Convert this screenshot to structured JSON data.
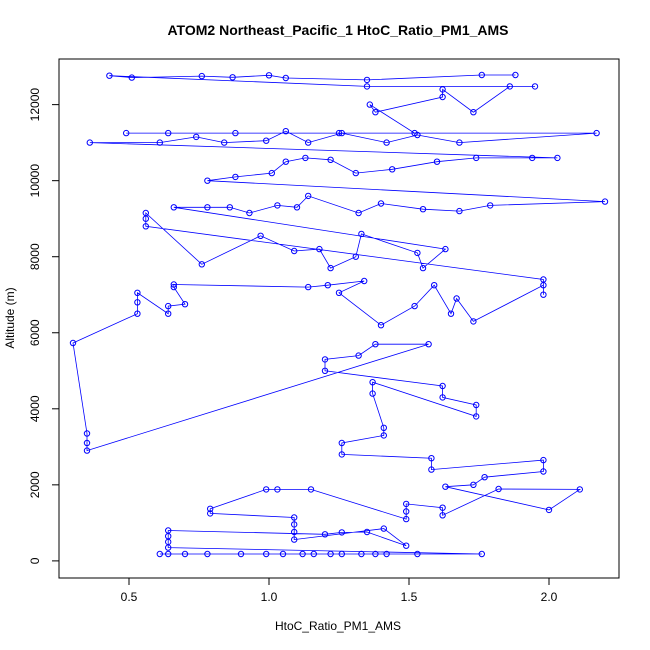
{
  "chart_data": {
    "type": "scatter",
    "title": "ATOM2 Northeast_Pacific_1 HtoC_Ratio_PM1_AMS",
    "xlabel": "HtoC_Ratio_PM1_AMS",
    "ylabel": "Altitude (m)",
    "xlim": [
      0.25,
      2.25
    ],
    "ylim": [
      -450,
      13200
    ],
    "xticks": [
      0.5,
      1.0,
      1.5,
      2.0
    ],
    "yticks": [
      0,
      2000,
      4000,
      6000,
      8000,
      10000,
      12000
    ],
    "xtick_labels": [
      "0.5",
      "1.0",
      "1.5",
      "2.0"
    ],
    "ytick_labels": [
      "0",
      "2000",
      "4000",
      "6000",
      "8000",
      "10000",
      "12000"
    ],
    "grid": false,
    "series": [
      {
        "color": "#0000ff",
        "marker": "open-circle",
        "connected": true,
        "points": [
          [
            0.61,
            180
          ],
          [
            0.64,
            180
          ],
          [
            0.7,
            180
          ],
          [
            0.78,
            180
          ],
          [
            0.9,
            180
          ],
          [
            0.99,
            180
          ],
          [
            1.05,
            180
          ],
          [
            1.12,
            180
          ],
          [
            1.16,
            180
          ],
          [
            1.22,
            180
          ],
          [
            1.26,
            180
          ],
          [
            1.33,
            180
          ],
          [
            1.38,
            180
          ],
          [
            1.42,
            180
          ],
          [
            1.53,
            180
          ],
          [
            1.76,
            180
          ],
          [
            0.64,
            350
          ],
          [
            0.64,
            500
          ],
          [
            0.64,
            650
          ],
          [
            0.64,
            800
          ],
          [
            1.2,
            700
          ],
          [
            1.26,
            750
          ],
          [
            1.35,
            760
          ],
          [
            1.49,
            400
          ],
          [
            1.41,
            850
          ],
          [
            1.09,
            560
          ],
          [
            1.09,
            760
          ],
          [
            1.09,
            960
          ],
          [
            1.09,
            1140
          ],
          [
            0.79,
            1250
          ],
          [
            0.79,
            1370
          ],
          [
            0.99,
            1880
          ],
          [
            1.03,
            1880
          ],
          [
            1.15,
            1880
          ],
          [
            1.49,
            1100
          ],
          [
            1.49,
            1300
          ],
          [
            1.49,
            1500
          ],
          [
            1.62,
            1400
          ],
          [
            1.62,
            1200
          ],
          [
            1.82,
            1890
          ],
          [
            2.11,
            1880
          ],
          [
            2.0,
            1340
          ],
          [
            1.63,
            1950
          ],
          [
            1.73,
            2000
          ],
          [
            1.77,
            2200
          ],
          [
            1.98,
            2350
          ],
          [
            1.98,
            2650
          ],
          [
            1.58,
            2400
          ],
          [
            1.58,
            2700
          ],
          [
            1.26,
            2800
          ],
          [
            1.26,
            3100
          ],
          [
            1.41,
            3300
          ],
          [
            1.41,
            3500
          ],
          [
            1.37,
            4400
          ],
          [
            1.37,
            4700
          ],
          [
            1.74,
            3800
          ],
          [
            1.74,
            4100
          ],
          [
            1.62,
            4300
          ],
          [
            1.62,
            4600
          ],
          [
            1.2,
            5000
          ],
          [
            1.2,
            5300
          ],
          [
            1.32,
            5400
          ],
          [
            1.38,
            5700
          ],
          [
            1.57,
            5700
          ],
          [
            0.35,
            2900
          ],
          [
            0.35,
            3100
          ],
          [
            0.35,
            3350
          ],
          [
            0.3,
            5730
          ],
          [
            0.53,
            6500
          ],
          [
            0.53,
            6800
          ],
          [
            0.53,
            7050
          ],
          [
            0.64,
            6500
          ],
          [
            0.64,
            6700
          ],
          [
            0.7,
            6750
          ],
          [
            0.66,
            7200
          ],
          [
            0.66,
            7270
          ],
          [
            1.14,
            7200
          ],
          [
            1.21,
            7250
          ],
          [
            1.34,
            7360
          ],
          [
            1.25,
            7050
          ],
          [
            1.4,
            6200
          ],
          [
            1.52,
            6700
          ],
          [
            1.59,
            7250
          ],
          [
            1.65,
            6500
          ],
          [
            1.67,
            6900
          ],
          [
            1.73,
            6300
          ],
          [
            1.98,
            7250
          ],
          [
            1.98,
            7000
          ],
          [
            1.98,
            7400
          ],
          [
            0.56,
            8800
          ],
          [
            0.56,
            9000
          ],
          [
            0.56,
            9150
          ],
          [
            0.76,
            7800
          ],
          [
            0.97,
            8550
          ],
          [
            1.09,
            8150
          ],
          [
            1.18,
            8200
          ],
          [
            1.22,
            7700
          ],
          [
            1.31,
            8000
          ],
          [
            1.33,
            8600
          ],
          [
            1.53,
            8100
          ],
          [
            1.55,
            7700
          ],
          [
            1.63,
            8200
          ],
          [
            0.66,
            9300
          ],
          [
            0.78,
            9300
          ],
          [
            0.86,
            9300
          ],
          [
            0.93,
            9150
          ],
          [
            1.03,
            9350
          ],
          [
            1.1,
            9300
          ],
          [
            1.14,
            9600
          ],
          [
            1.32,
            9150
          ],
          [
            1.4,
            9400
          ],
          [
            1.55,
            9250
          ],
          [
            1.68,
            9200
          ],
          [
            1.79,
            9350
          ],
          [
            2.2,
            9450
          ],
          [
            0.78,
            10000
          ],
          [
            0.88,
            10100
          ],
          [
            1.01,
            10200
          ],
          [
            1.06,
            10500
          ],
          [
            1.13,
            10600
          ],
          [
            1.22,
            10550
          ],
          [
            1.31,
            10200
          ],
          [
            1.44,
            10300
          ],
          [
            1.6,
            10500
          ],
          [
            1.74,
            10600
          ],
          [
            1.94,
            10600
          ],
          [
            2.03,
            10600
          ],
          [
            0.36,
            11000
          ],
          [
            0.61,
            11000
          ],
          [
            0.74,
            11150
          ],
          [
            0.84,
            11000
          ],
          [
            0.99,
            11050
          ],
          [
            1.06,
            11300
          ],
          [
            1.14,
            11000
          ],
          [
            1.26,
            11250
          ],
          [
            1.42,
            11000
          ],
          [
            1.53,
            11200
          ],
          [
            1.68,
            11000
          ],
          [
            2.17,
            11250
          ],
          [
            0.49,
            11250
          ],
          [
            0.64,
            11250
          ],
          [
            0.88,
            11250
          ],
          [
            1.25,
            11250
          ],
          [
            1.52,
            11250
          ],
          [
            1.36,
            12000
          ],
          [
            1.38,
            11800
          ],
          [
            1.62,
            12200
          ],
          [
            1.62,
            12400
          ],
          [
            1.73,
            11800
          ],
          [
            1.86,
            12480
          ],
          [
            1.95,
            12480
          ],
          [
            1.35,
            12480
          ],
          [
            0.43,
            12760
          ],
          [
            0.51,
            12710
          ],
          [
            0.76,
            12750
          ],
          [
            0.87,
            12720
          ],
          [
            1.0,
            12770
          ],
          [
            1.06,
            12700
          ],
          [
            1.35,
            12650
          ],
          [
            1.76,
            12780
          ],
          [
            1.88,
            12780
          ]
        ]
      }
    ]
  }
}
